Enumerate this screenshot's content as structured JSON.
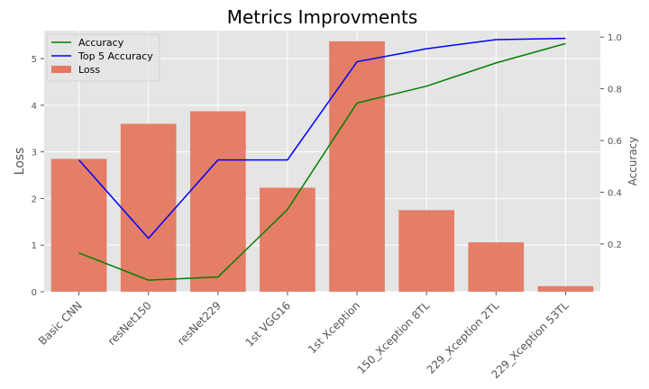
{
  "chart_data": {
    "type": "bar",
    "title": "Metrics Improvments",
    "categories": [
      "Basic CNN",
      "resNet150",
      "resNet229",
      "1st VGG16",
      "1st Xception",
      "150_Xception 8TL",
      "229_Xception 2TL",
      "229_Xception 53TL"
    ],
    "ylabel": "Loss",
    "ylabel_right": "Accuracy",
    "ylim": [
      0,
      5.6
    ],
    "ylim_right": [
      0.015,
      1.025
    ],
    "yticks": [
      0,
      1,
      2,
      3,
      4,
      5
    ],
    "yticks_right": [
      0.2,
      0.4,
      0.6,
      0.8,
      1.0
    ],
    "bar_series": {
      "name": "Loss",
      "color": "#e5785f",
      "values": [
        2.85,
        3.6,
        3.87,
        2.23,
        5.37,
        1.75,
        1.06,
        0.12
      ]
    },
    "line_series": [
      {
        "name": "Accuracy",
        "color": "#008000",
        "axis": "right",
        "values": [
          0.165,
          0.06,
          0.072,
          0.333,
          0.745,
          0.81,
          0.9,
          0.975
        ]
      },
      {
        "name": "Top 5 Accuracy",
        "color": "#0000ff",
        "axis": "right",
        "values": [
          0.525,
          0.222,
          0.525,
          0.525,
          0.905,
          0.955,
          0.99,
          0.995
        ]
      }
    ],
    "grid": true,
    "legend_position": "top-left",
    "background": "#e5e5e5",
    "grid_color": "#ffffff"
  }
}
